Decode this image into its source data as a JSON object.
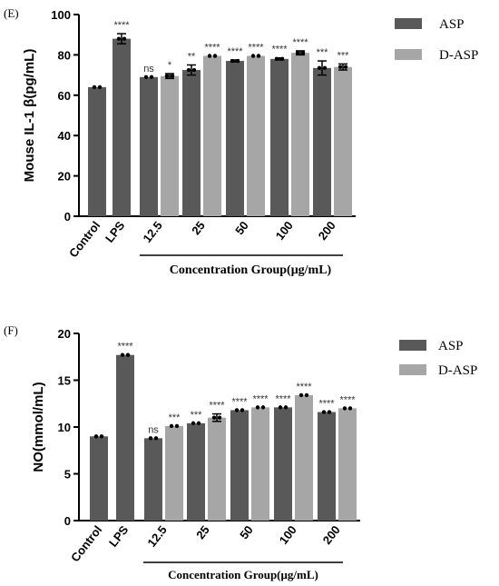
{
  "colors": {
    "asp": "#595959",
    "dasp": "#a6a6a6",
    "axis": "#000000",
    "dot": "#000000"
  },
  "chart_data": [
    {
      "type": "bar",
      "panel_label": "(E)",
      "ylabel": "Mouse IL-1 β(pg/mL)",
      "xlabel": "Concentration Group(μg/mL)",
      "ylim": [
        0,
        100
      ],
      "yticks": [
        "0",
        "20",
        "40",
        "60",
        "80",
        "100"
      ],
      "ytick_values": [
        0,
        20,
        40,
        60,
        80,
        100
      ],
      "legend": {
        "position": "top-right",
        "entries": [
          {
            "key": "asp",
            "label": "ASP"
          },
          {
            "key": "dasp",
            "label": "D-ASP"
          }
        ]
      },
      "groups": [
        {
          "label": "Control",
          "bars": [
            {
              "key": "asp",
              "value": 64,
              "err": 0,
              "sig": ""
            }
          ]
        },
        {
          "label": "LPS",
          "bars": [
            {
              "key": "asp",
              "value": 88,
              "err": 2.5,
              "sig": "****"
            }
          ]
        },
        {
          "label": "12.5",
          "bars": [
            {
              "key": "asp",
              "value": 69,
              "err": 0,
              "sig": "ns"
            },
            {
              "key": "dasp",
              "value": 69.5,
              "err": 1.2,
              "sig": "*"
            }
          ]
        },
        {
          "label": "25",
          "bars": [
            {
              "key": "asp",
              "value": 72.5,
              "err": 2.5,
              "sig": "**"
            },
            {
              "key": "dasp",
              "value": 79.5,
              "err": 0,
              "sig": "****"
            }
          ]
        },
        {
          "label": "50",
          "bars": [
            {
              "key": "asp",
              "value": 77,
              "err": 0.5,
              "sig": "****"
            },
            {
              "key": "dasp",
              "value": 79.5,
              "err": 0,
              "sig": "****"
            }
          ]
        },
        {
          "label": "100",
          "bars": [
            {
              "key": "asp",
              "value": 78,
              "err": 0.5,
              "sig": "****"
            },
            {
              "key": "dasp",
              "value": 81,
              "err": 1,
              "sig": "****"
            }
          ]
        },
        {
          "label": "200",
          "bars": [
            {
              "key": "asp",
              "value": 73.5,
              "err": 3.5,
              "sig": "***"
            },
            {
              "key": "dasp",
              "value": 74,
              "err": 1.5,
              "sig": "***"
            }
          ]
        }
      ]
    },
    {
      "type": "bar",
      "panel_label": "(F)",
      "ylabel": "NO(mmol/mL)",
      "xlabel": "Concentration Group(μg/mL)",
      "ylim": [
        0,
        20
      ],
      "yticks": [
        "0",
        "5",
        "10",
        "15",
        "20"
      ],
      "ytick_values": [
        0,
        5,
        10,
        15,
        20
      ],
      "legend": {
        "position": "top-right",
        "entries": [
          {
            "key": "asp",
            "label": "ASP"
          },
          {
            "key": "dasp",
            "label": "D-ASP"
          }
        ]
      },
      "groups": [
        {
          "label": "Control",
          "bars": [
            {
              "key": "asp",
              "value": 9.0,
              "err": 0,
              "sig": ""
            }
          ]
        },
        {
          "label": "LPS",
          "bars": [
            {
              "key": "asp",
              "value": 17.7,
              "err": 0,
              "sig": "****"
            }
          ]
        },
        {
          "label": "12.5",
          "bars": [
            {
              "key": "asp",
              "value": 8.8,
              "err": 0,
              "sig": "ns"
            },
            {
              "key": "dasp",
              "value": 10.1,
              "err": 0,
              "sig": "***"
            }
          ]
        },
        {
          "label": "25",
          "bars": [
            {
              "key": "asp",
              "value": 10.4,
              "err": 0,
              "sig": "***"
            },
            {
              "key": "dasp",
              "value": 11.0,
              "err": 0.4,
              "sig": "****"
            }
          ]
        },
        {
          "label": "50",
          "bars": [
            {
              "key": "asp",
              "value": 11.8,
              "err": 0,
              "sig": "****"
            },
            {
              "key": "dasp",
              "value": 12.1,
              "err": 0,
              "sig": "****"
            }
          ]
        },
        {
          "label": "100",
          "bars": [
            {
              "key": "asp",
              "value": 12.1,
              "err": 0,
              "sig": "****"
            },
            {
              "key": "dasp",
              "value": 13.4,
              "err": 0,
              "sig": "****"
            }
          ]
        },
        {
          "label": "200",
          "bars": [
            {
              "key": "asp",
              "value": 11.6,
              "err": 0,
              "sig": "****"
            },
            {
              "key": "dasp",
              "value": 12.0,
              "err": 0,
              "sig": "****"
            }
          ]
        }
      ]
    }
  ]
}
